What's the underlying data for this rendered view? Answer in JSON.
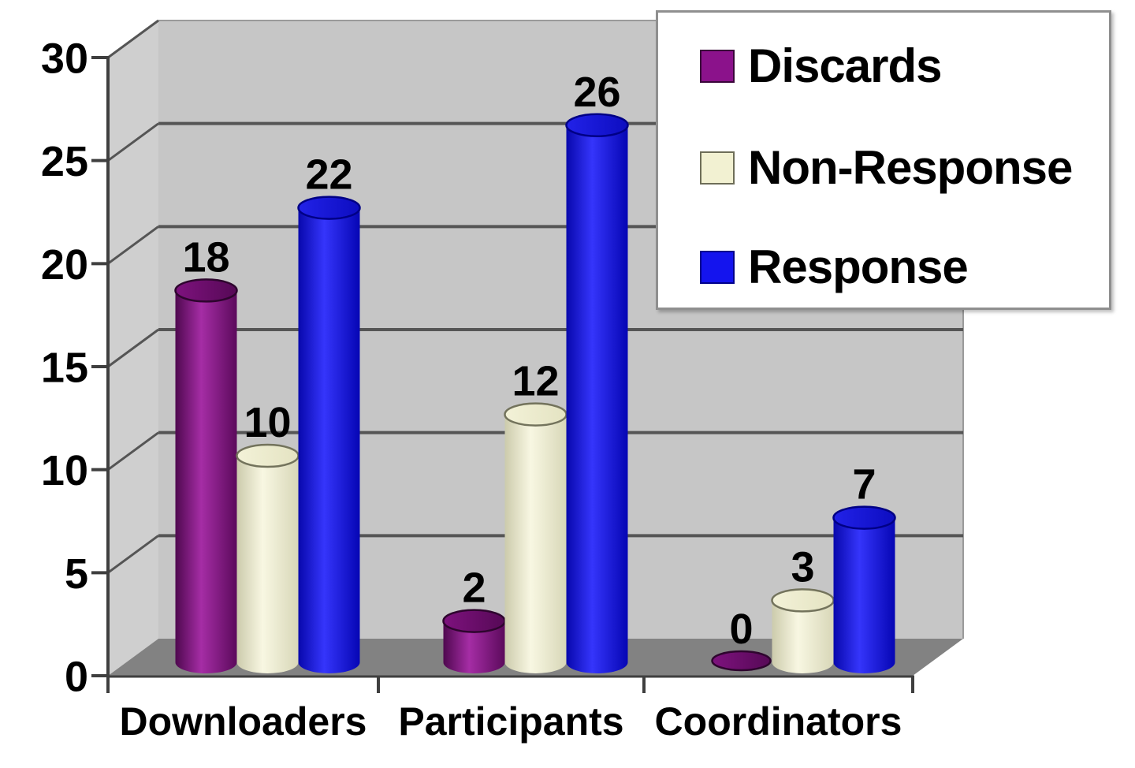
{
  "page": {
    "background": "#FFFFFF"
  },
  "chart_data": {
    "type": "bar",
    "style": "3d-cylinder-grouped",
    "title": "",
    "xlabel": "",
    "ylabel": "",
    "categories": [
      "Downloaders",
      "Participants",
      "Coordinators"
    ],
    "series": [
      {
        "name": "Discards",
        "values": [
          18,
          2,
          0
        ],
        "color": "#8B128B",
        "body_dark": "#4F084F",
        "body_light": "#A52DA5",
        "body_dark2": "#5C0A5C",
        "cap": "#7E127E",
        "cap2": "#560956",
        "cap_stroke": "#2E052E",
        "swatch_border": "#3A063A"
      },
      {
        "name": "Non-Response",
        "values": [
          10,
          12,
          3
        ],
        "color": "#F2F1D2",
        "body_dark": "#CCCBAC",
        "body_light": "#F8F7E2",
        "body_dark2": "#D8D7B8",
        "cap": "#F3F2D8",
        "cap2": "#E4E3C2",
        "cap_stroke": "#73735C",
        "swatch_border": "#6E6E58"
      },
      {
        "name": "Response",
        "values": [
          22,
          26,
          7
        ],
        "color": "#1414EE",
        "body_dark": "#0808AC",
        "body_light": "#3535FB",
        "body_dark2": "#0606B4",
        "cap": "#2222E8",
        "cap2": "#0D0DC0",
        "cap_stroke": "#000085",
        "swatch_border": "#00008B"
      }
    ],
    "ylim": [
      0,
      30
    ],
    "yticks": [
      0,
      5,
      10,
      15,
      20,
      25,
      30
    ],
    "gridlines": true,
    "data_labels": true,
    "legend_position": "top-right",
    "colors": {
      "back_wall": "#C6C6C6",
      "side_wall": "#CFCFCF",
      "floor": "#828282",
      "gridline": "#555555",
      "wall_edge": "#9A9A9A",
      "axis": "#3F3F3F",
      "text": "#000000",
      "legend_bg": "#FFFFFF",
      "legend_border": "#8F8F8F"
    }
  }
}
